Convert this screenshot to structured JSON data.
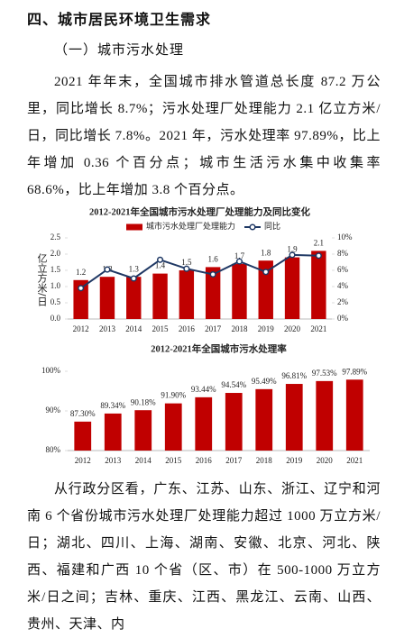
{
  "heading": "四、城市居民环境卫生需求",
  "subheading": "（一）城市污水处理",
  "paragraphs": [
    "2021 年年末，全国城市排水管道总长度 87.2 万公里，同比增长 8.7%；污水处理厂处理能力 2.1 亿立方米/日，同比增长 7.8%。2021 年，污水处理率 97.89%，比上年增加 0.36 个百分点；城市生活污水集中收集率 68.6%，比上年增加 3.8 个百分点。",
    "从行政分区看，广东、江苏、山东、浙江、辽宁和河南 6 个省份城市污水处理厂处理能力超过 1000 万立方米/日；湖北、四川、上海、湖南、安徽、北京、河北、陕西、福建和广西 10 个省（区、市）在 500-1000 万立方米/日之间；吉林、重庆、江西、黑龙江、云南、山西、贵州、天津、内"
  ],
  "chart_data": [
    {
      "type": "bar",
      "title": "2012-2021年全国城市污水处理厂处理能力及同比变化",
      "y_label": "亿立方米/日",
      "categories": [
        "2012",
        "2013",
        "2014",
        "2015",
        "2016",
        "2017",
        "2018",
        "2019",
        "2020",
        "2021"
      ],
      "series": [
        {
          "name": "城市污水处理厂处理能力",
          "type": "bar",
          "color": "#c00000",
          "values": [
            1.2,
            1.3,
            1.3,
            1.4,
            1.5,
            1.6,
            1.7,
            1.8,
            1.9,
            2.1
          ]
        },
        {
          "name": "同比",
          "type": "line",
          "axis": "y2",
          "color": "#1f3864",
          "values": [
            3.8,
            6.1,
            5.0,
            7.3,
            6.2,
            5.5,
            7.1,
            5.8,
            7.9,
            7.8
          ]
        }
      ],
      "ylim": [
        0,
        2.5
      ],
      "yticks": [
        {
          "value": 0,
          "label": "0.0"
        },
        0.5,
        {
          "value": 1,
          "label": "1.0"
        },
        1.5,
        {
          "value": 2,
          "label": "2.0"
        },
        2.5
      ],
      "y2lim": [
        0,
        10
      ],
      "y2ticks": [
        {
          "value": 0,
          "label": "0%"
        },
        {
          "value": 2,
          "label": "2%"
        },
        {
          "value": 4,
          "label": "4%"
        },
        {
          "value": 6,
          "label": "6%"
        },
        {
          "value": 8,
          "label": "8%"
        },
        {
          "value": 10,
          "label": "10%"
        }
      ],
      "legend": "top"
    },
    {
      "type": "bar",
      "title": "2012-2021年全国城市污水处理率",
      "categories": [
        "2012",
        "2013",
        "2014",
        "2015",
        "2016",
        "2017",
        "2018",
        "2019",
        "2020",
        "2021"
      ],
      "color": "#c00000",
      "values": [
        87.3,
        89.34,
        90.18,
        91.9,
        93.44,
        94.54,
        95.49,
        96.81,
        97.53,
        97.89
      ],
      "value_labels": [
        "87.30%",
        "89.34%",
        "90.18%",
        "91.90%",
        "93.44%",
        "94.54%",
        "95.49%",
        "96.81%",
        "97.53%",
        "97.89%"
      ],
      "ylim": [
        80,
        100
      ],
      "yticks": [
        {
          "value": 80,
          "label": "80%"
        },
        {
          "value": 90,
          "label": "90%"
        },
        {
          "value": 100,
          "label": "100%"
        }
      ]
    }
  ]
}
